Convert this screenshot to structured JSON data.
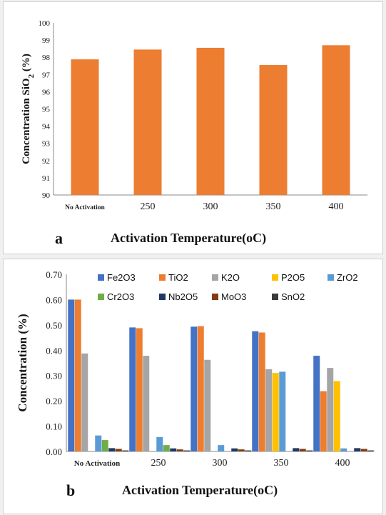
{
  "chart_data": [
    {
      "id": "a",
      "type": "bar",
      "panel_label": "a",
      "xlabel": "Activation Temperature(oC)",
      "ylabel_main": "Concentration SiO",
      "ylabel_sub": "2",
      "ylabel_end": " (%)",
      "categories": [
        "No Activation",
        "250",
        "300",
        "350",
        "400"
      ],
      "values": [
        97.88,
        98.45,
        98.55,
        97.55,
        98.7
      ],
      "ylim": [
        90,
        100
      ],
      "yticks": [
        "90",
        "91",
        "92",
        "93",
        "94",
        "95",
        "96",
        "97",
        "98",
        "99",
        "100"
      ],
      "bar_color": "#ED7D31",
      "grid": false,
      "legend": "none"
    },
    {
      "id": "b",
      "type": "bar",
      "panel_label": "b",
      "xlabel": "Activation Temperature(oC)",
      "ylabel": "Concentration  (%)",
      "categories": [
        "No Activation",
        "250",
        "300",
        "350",
        "400"
      ],
      "ylim": [
        0,
        0.7
      ],
      "yticks": [
        "0.00",
        "0.10",
        "0.20",
        "0.30",
        "0.40",
        "0.50",
        "0.60",
        "0.70"
      ],
      "grid": false,
      "legend": "top",
      "series": [
        {
          "name": "Fe2O3",
          "color": "#4472C4",
          "values": [
            0.6,
            0.49,
            0.493,
            0.475,
            0.378
          ]
        },
        {
          "name": "TiO2",
          "color": "#ED7D31",
          "values": [
            0.6,
            0.487,
            0.495,
            0.47,
            0.238
          ]
        },
        {
          "name": "K2O",
          "color": "#A5A5A5",
          "values": [
            0.387,
            0.378,
            0.362,
            0.325,
            0.33
          ]
        },
        {
          "name": "P2O5",
          "color": "#FFC000",
          "values": [
            0.0,
            0.0,
            0.0,
            0.31,
            0.278
          ]
        },
        {
          "name": "ZrO2",
          "color": "#5B9BD5",
          "values": [
            0.063,
            0.057,
            0.025,
            0.315,
            0.012
          ]
        },
        {
          "name": "Cr2O3",
          "color": "#70AD47",
          "values": [
            0.045,
            0.025,
            0.0,
            0.0,
            0.0
          ]
        },
        {
          "name": "Nb2O5",
          "color": "#1F3864",
          "values": [
            0.013,
            0.012,
            0.012,
            0.013,
            0.013
          ]
        },
        {
          "name": "MoO3",
          "color": "#843C0C",
          "values": [
            0.01,
            0.008,
            0.008,
            0.01,
            0.01
          ]
        },
        {
          "name": "SnO2",
          "color": "#3B3B3B",
          "values": [
            0.004,
            0.004,
            0.004,
            0.004,
            0.004
          ]
        }
      ]
    }
  ]
}
